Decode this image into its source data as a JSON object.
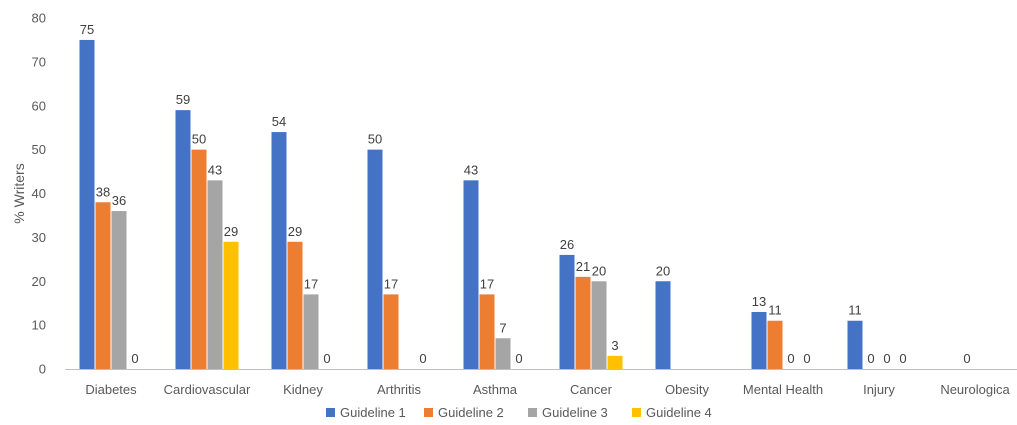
{
  "chart_data": {
    "type": "bar",
    "title": "",
    "xlabel": "",
    "ylabel": "% Writers",
    "ylim": [
      0,
      80
    ],
    "yticks": [
      0,
      10,
      20,
      30,
      40,
      50,
      60,
      70,
      80
    ],
    "grid": false,
    "legend_position": "bottom",
    "categories": [
      "Diabetes",
      "Cardiovascular",
      "Kidney",
      "Arthritis",
      "Asthma",
      "Cancer",
      "Obesity",
      "Mental Health",
      "Injury",
      "Neurologica"
    ],
    "series": [
      {
        "name": "Guideline 1",
        "color": "#4472C4",
        "values": [
          75,
          59,
          54,
          50,
          43,
          26,
          20,
          13,
          11,
          null
        ]
      },
      {
        "name": "Guideline 2",
        "color": "#ED7D31",
        "values": [
          38,
          50,
          29,
          17,
          17,
          21,
          null,
          11,
          0,
          0
        ]
      },
      {
        "name": "Guideline 3",
        "color": "#A5A5A5",
        "values": [
          36,
          43,
          17,
          null,
          7,
          20,
          null,
          0,
          0,
          null
        ]
      },
      {
        "name": "Guideline 4",
        "color": "#FFC000",
        "values": [
          0,
          29,
          0,
          0,
          0,
          3,
          null,
          0,
          0,
          null
        ]
      }
    ]
  }
}
